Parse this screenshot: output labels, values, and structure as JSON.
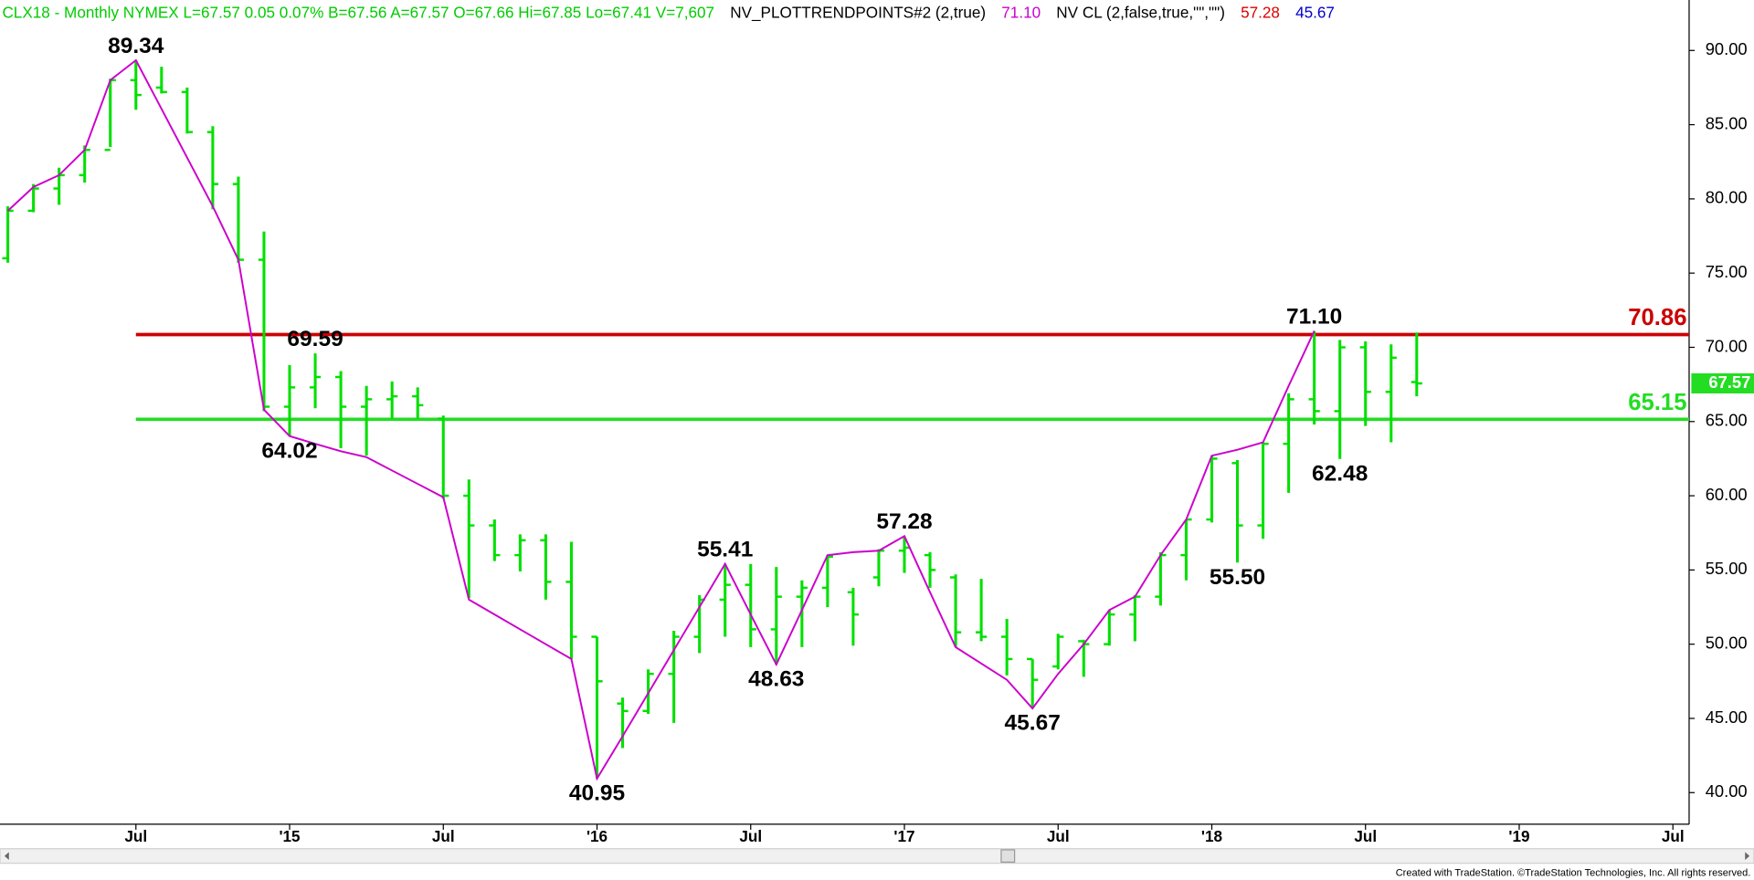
{
  "chart_data": {
    "type": "ohlc",
    "header": [
      {
        "text": "CLX18 - Monthly  NYMEX  L=67.57  0.05  0.07%  B=67.56  A=67.57  O=67.66  Hi=67.85  Lo=67.41  V=7,607",
        "color": "#00cc00"
      },
      {
        "text": "NV_PLOTTRENDPOINTS#2 (2,true)",
        "color": "#000000"
      },
      {
        "text": "71.10",
        "color": "#cc00cc"
      },
      {
        "text": "NV CL (2,false,true,\"\",\"\")",
        "color": "#000000"
      },
      {
        "text": "57.28",
        "color": "#dd0000"
      },
      {
        "text": "45.67",
        "color": "#0000cc"
      }
    ],
    "footer": "Created with TradeStation. ©TradeStation Technologies, Inc. All rights reserved.",
    "categories": [
      null,
      null,
      null,
      null,
      null,
      "Jul",
      null,
      null,
      null,
      null,
      null,
      "'15",
      null,
      null,
      null,
      null,
      null,
      "Jul",
      null,
      null,
      null,
      null,
      null,
      "'16",
      null,
      null,
      null,
      null,
      null,
      "Jul",
      null,
      null,
      null,
      null,
      null,
      "'17",
      null,
      null,
      null,
      null,
      null,
      "Jul",
      null,
      null,
      null,
      null,
      null,
      "'18",
      null,
      null,
      null,
      null,
      null,
      "Jul",
      null,
      null,
      null,
      null,
      null,
      "'19",
      null,
      null,
      null,
      null,
      null,
      "Jul"
    ],
    "ohlc": {
      "color": "#00e000",
      "open": [
        76,
        79.2,
        80.7,
        81.6,
        83.3,
        88,
        87.5,
        87.2,
        84.5,
        81,
        75.9,
        66,
        67.3,
        68,
        66,
        66.5,
        66.7,
        65.2,
        60,
        58,
        56,
        57,
        54.2,
        50.5,
        46,
        45.5,
        48,
        50.5,
        53,
        54,
        51,
        53.2,
        53.8,
        53.5,
        54.5,
        56.3,
        56,
        54.5,
        50.8,
        50.5,
        49,
        48.5,
        50.2,
        50,
        52,
        53.2,
        56,
        58.4,
        62.2,
        58,
        63.5,
        66.5,
        65.7,
        70,
        67,
        67.66,
        null,
        null,
        null,
        null,
        null,
        null,
        null,
        null,
        null,
        null
      ],
      "high": [
        79.5,
        81,
        82.1,
        83.6,
        88.1,
        89.34,
        88.9,
        87.5,
        84.9,
        81.5,
        77.8,
        68.8,
        69.59,
        68.4,
        67.4,
        67.7,
        67.3,
        65.4,
        61.1,
        58.4,
        57.4,
        57.4,
        56.9,
        50.5,
        46.4,
        48.3,
        50.9,
        53.3,
        55.41,
        55.4,
        55.2,
        54.3,
        56,
        53.8,
        56.4,
        57.28,
        56.2,
        54.7,
        54.4,
        51.7,
        49,
        50.7,
        50.3,
        52.3,
        53.3,
        56.2,
        58.4,
        62.7,
        62.4,
        63.6,
        66.9,
        71.1,
        70.5,
        70.4,
        70.2,
        71,
        null,
        null,
        null,
        null,
        null,
        null,
        null,
        null,
        null,
        null
      ],
      "low": [
        75.7,
        79.1,
        79.6,
        81.1,
        83.5,
        86,
        87.1,
        84.4,
        79.3,
        75.7,
        65.7,
        64.02,
        65.9,
        63.2,
        62.7,
        65.2,
        65.2,
        59.8,
        53.1,
        55.6,
        54.9,
        53,
        49,
        40.95,
        43,
        45.3,
        44.7,
        49.4,
        50.5,
        49.8,
        48.63,
        49.8,
        52.5,
        49.9,
        53.9,
        54.8,
        53.8,
        49.8,
        50.2,
        47.9,
        45.67,
        48.3,
        47.8,
        49.9,
        50.2,
        52.6,
        54.3,
        58.2,
        55.5,
        57.1,
        60.2,
        64.8,
        62.48,
        64.7,
        63.6,
        66.7,
        null,
        null,
        null,
        null,
        null,
        null,
        null,
        null,
        null,
        null
      ],
      "close": [
        79.2,
        80.7,
        81.6,
        83.3,
        88,
        87,
        87.2,
        84.5,
        81,
        75.9,
        66,
        67.3,
        68,
        66,
        66.5,
        66.7,
        66.1,
        60,
        58,
        56,
        57,
        54.2,
        50.5,
        47.5,
        45.5,
        48,
        50.5,
        53,
        54,
        51,
        53.2,
        53.8,
        55.9,
        52,
        56.3,
        56.5,
        55,
        50.8,
        50.5,
        49,
        47.6,
        50.5,
        50,
        52,
        53.2,
        56,
        58.4,
        62.5,
        58,
        63.5,
        66.5,
        65.7,
        70,
        67,
        69.3,
        67.57,
        null,
        null,
        null,
        null,
        null,
        null,
        null,
        null,
        null,
        null
      ],
      "high_labels": [
        null,
        null,
        null,
        null,
        null,
        "89.34",
        null,
        null,
        null,
        null,
        null,
        null,
        "69.59",
        null,
        null,
        null,
        null,
        null,
        null,
        null,
        null,
        null,
        null,
        null,
        null,
        null,
        null,
        null,
        "55.41",
        null,
        null,
        null,
        null,
        null,
        null,
        "57.28",
        null,
        null,
        null,
        null,
        null,
        null,
        null,
        null,
        null,
        null,
        null,
        null,
        null,
        null,
        null,
        "71.10",
        null,
        null,
        null,
        null,
        null,
        null,
        null,
        null,
        null,
        null,
        null,
        null,
        null,
        null
      ],
      "low_labels": [
        null,
        null,
        null,
        null,
        null,
        null,
        null,
        null,
        null,
        null,
        null,
        "64.02",
        null,
        null,
        null,
        null,
        null,
        null,
        null,
        null,
        null,
        null,
        null,
        "40.95",
        null,
        null,
        null,
        null,
        null,
        null,
        "48.63",
        null,
        null,
        null,
        null,
        null,
        null,
        null,
        null,
        null,
        "45.67",
        null,
        null,
        null,
        null,
        null,
        null,
        null,
        "55.50",
        null,
        null,
        null,
        "62.48",
        null,
        null,
        null,
        null,
        null,
        null,
        null,
        null,
        null,
        null,
        null,
        null,
        null
      ]
    },
    "trend": {
      "color": "#cc00cc",
      "values": [
        79.2,
        80.8,
        81.6,
        83.3,
        88,
        89.34,
        86.06,
        82.78,
        79.5,
        75.9,
        65.8,
        64.02,
        63.5,
        63,
        62.6,
        61.7,
        60.8,
        59.9,
        53,
        52,
        51,
        50,
        49,
        40.95,
        43.8,
        46.7,
        49.6,
        52.5,
        55.41,
        52,
        48.63,
        52.3,
        56,
        56.2,
        56.3,
        57.28,
        53.5,
        49.8,
        48.7,
        47.6,
        45.67,
        48,
        50,
        52.3,
        53.2,
        56,
        58.4,
        62.7,
        63.1,
        63.6,
        67.4,
        71.1,
        null,
        null,
        null,
        null,
        null,
        null,
        null,
        null,
        null,
        null,
        null,
        null,
        null,
        null
      ]
    },
    "hlines": [
      {
        "value": 70.86,
        "label": "70.86",
        "color": "#cc0000"
      },
      {
        "value": 65.15,
        "label": "65.15",
        "color": "#22dd22"
      }
    ],
    "last_price": {
      "value": 67.57,
      "label": "67.57",
      "color": "#22dd22"
    },
    "ylim": [
      38.1,
      93.4
    ],
    "yticks": [
      {
        "value": 40,
        "label": "40.00"
      },
      {
        "value": 45,
        "label": "45.00"
      },
      {
        "value": 50,
        "label": "50.00"
      },
      {
        "value": 55,
        "label": "55.00"
      },
      {
        "value": 60,
        "label": "60.00"
      },
      {
        "value": 65,
        "label": "65.00"
      },
      {
        "value": 70,
        "label": "70.00"
      },
      {
        "value": 75,
        "label": "75.00"
      },
      {
        "value": 80,
        "label": "80.00"
      },
      {
        "value": 85,
        "label": "85.00"
      },
      {
        "value": 90,
        "label": "90.00"
      }
    ]
  }
}
